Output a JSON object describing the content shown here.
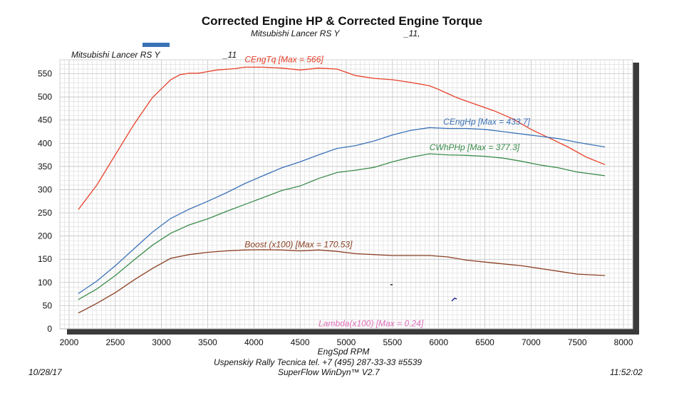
{
  "header": {
    "title": "Corrected Engine HP & Corrected Engine Torque",
    "subtitle": "Mitsubishi Lancer RS Y",
    "subtitle_suffix": "_11,"
  },
  "legend": {
    "label": "Mitsubishi Lancer RS Y",
    "suffix": "_11",
    "color": "#3a72b8"
  },
  "footer": {
    "date": "10/28/17",
    "time": "11:52:02",
    "line1": "Uspenskiy Rally Tecnica   tel. +7 (495) 287-33-33 #5539",
    "line2": "SuperFlow WinDyn™ V2.7"
  },
  "chart_data": {
    "type": "line",
    "title": "Corrected Engine HP & Corrected Engine Torque",
    "xlabel": "EngSpd  RPM",
    "ylabel": "",
    "xlim": [
      1900,
      8100
    ],
    "ylim": [
      0,
      580
    ],
    "x_ticks": [
      "2000",
      "2500",
      "3000",
      "3500",
      "4000",
      "4500",
      "5000",
      "5500",
      "6000",
      "6500",
      "7000",
      "7500",
      "8000"
    ],
    "y_ticks": [
      "0",
      "50",
      "100",
      "150",
      "200",
      "250",
      "300",
      "350",
      "400",
      "450",
      "500",
      "550"
    ],
    "grid": true,
    "series": [
      {
        "name": "CEngTq",
        "annotation": "CEngTq [Max = 566]",
        "ann_x": 3900,
        "ann_y": 575,
        "color": "#e8402a",
        "x": [
          2100,
          2300,
          2500,
          2700,
          2900,
          3100,
          3200,
          3300,
          3400,
          3600,
          3800,
          3900,
          4100,
          4300,
          4500,
          4700,
          4900,
          5100,
          5300,
          5500,
          5700,
          5900,
          6000,
          6200,
          6400,
          6600,
          6800,
          7000,
          7200,
          7400,
          7600,
          7800
        ],
        "y": [
          257,
          310,
          375,
          440,
          498,
          537,
          548,
          551,
          551,
          558,
          561,
          564,
          564,
          562,
          558,
          562,
          560,
          546,
          540,
          537,
          531,
          524,
          516,
          498,
          484,
          470,
          453,
          430,
          411,
          392,
          370,
          354
        ]
      },
      {
        "name": "CEngHp",
        "annotation": "CEngHp [Max = 433.7]",
        "ann_x": 6050,
        "ann_y": 440,
        "color": "#3a72b8",
        "x": [
          2100,
          2300,
          2500,
          2700,
          2900,
          3100,
          3300,
          3500,
          3700,
          3900,
          4100,
          4300,
          4500,
          4700,
          4900,
          5100,
          5300,
          5500,
          5700,
          5900,
          6100,
          6300,
          6500,
          6700,
          6900,
          7100,
          7300,
          7500,
          7800
        ],
        "y": [
          76,
          103,
          136,
          172,
          208,
          238,
          258,
          275,
          293,
          313,
          330,
          347,
          360,
          375,
          389,
          395,
          405,
          418,
          428,
          433.7,
          432,
          432,
          430,
          425,
          420,
          415,
          410,
          402,
          392
        ]
      },
      {
        "name": "CWhPHp",
        "annotation": "CWhPHp [Max = 377.3]",
        "ann_x": 5900,
        "ann_y": 385,
        "color": "#3a8c4a",
        "x": [
          2100,
          2300,
          2500,
          2700,
          2900,
          3100,
          3300,
          3500,
          3700,
          3900,
          4100,
          4300,
          4500,
          4700,
          4900,
          5100,
          5300,
          5500,
          5700,
          5900,
          6100,
          6300,
          6500,
          6700,
          6900,
          7100,
          7300,
          7500,
          7800
        ],
        "y": [
          63,
          86,
          115,
          148,
          180,
          206,
          224,
          237,
          253,
          268,
          283,
          298,
          308,
          324,
          337,
          342,
          348,
          360,
          370,
          377.3,
          375,
          374,
          372,
          368,
          361,
          353,
          347,
          338,
          330
        ]
      },
      {
        "name": "Boost (x100)",
        "annotation": "Boost (x100) [Max = 170.53]",
        "ann_x": 3900,
        "ann_y": 176,
        "color": "#8b3f22",
        "x": [
          2100,
          2300,
          2500,
          2700,
          2900,
          3100,
          3300,
          3500,
          3700,
          3900,
          4100,
          4300,
          4500,
          4700,
          4900,
          5100,
          5300,
          5500,
          5700,
          5900,
          6100,
          6300,
          6500,
          6700,
          6900,
          7100,
          7300,
          7500,
          7800
        ],
        "y": [
          34,
          55,
          78,
          105,
          130,
          152,
          160,
          165,
          168,
          170,
          170.5,
          170,
          168,
          170,
          167,
          162,
          160,
          158,
          158,
          158,
          155,
          148,
          144,
          140,
          136,
          130,
          124,
          118,
          115
        ]
      },
      {
        "name": "Lambda (x100)",
        "annotation": "Lambda(x100) [Max = 0.24]",
        "ann_x": 4700,
        "ann_y": 5,
        "color": "#e070b8",
        "x": [],
        "y": []
      }
    ]
  }
}
